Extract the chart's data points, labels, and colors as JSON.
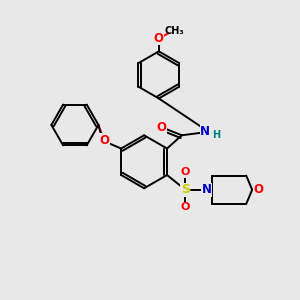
{
  "bg_color": "#e8e8e8",
  "bond_color": "#000000",
  "atom_colors": {
    "O": "#ff0000",
    "N": "#0000cc",
    "S": "#cccc00",
    "C": "#000000",
    "H": "#008080"
  },
  "lw": 1.4,
  "fs": 8.5
}
